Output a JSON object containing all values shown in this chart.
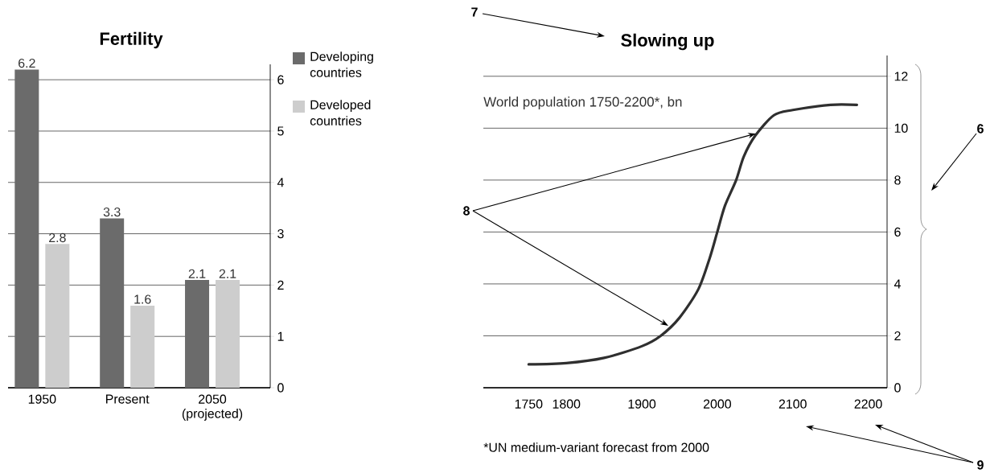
{
  "chart_data": [
    {
      "type": "bar",
      "title": "Fertility",
      "categories": [
        "1950",
        "Present",
        "2050 (projected)"
      ],
      "series": [
        {
          "name": "Developing countries",
          "color": "#6b6b6b",
          "values": [
            6.2,
            3.3,
            2.1
          ]
        },
        {
          "name": "Developed countries",
          "color": "#cdcdcd",
          "values": [
            2.8,
            1.6,
            2.1
          ]
        }
      ],
      "ylim": [
        0,
        6.3
      ],
      "yticks": [
        0,
        1,
        2,
        3,
        4,
        5,
        6
      ],
      "grid": "y",
      "legend": "top right",
      "data_labels": true
    },
    {
      "type": "line",
      "title": "Slowing up",
      "subtitle": "World population 1750-2200*, bn",
      "x": [
        1750,
        1800,
        1850,
        1900,
        1925,
        1950,
        1975,
        1990,
        2000,
        2010,
        2025,
        2035,
        2050,
        2075,
        2100,
        2150,
        2185
      ],
      "values": [
        0.9,
        0.95,
        1.15,
        1.6,
        2.0,
        2.7,
        3.8,
        5.0,
        6.0,
        7.0,
        8.0,
        8.9,
        9.7,
        10.5,
        10.7,
        10.9,
        10.9
      ],
      "color": "#2f2f2f",
      "xlim": [
        1690,
        2225
      ],
      "xticks": [
        1750,
        1800,
        1900,
        2000,
        2100,
        2200
      ],
      "ylim": [
        0,
        12.8
      ],
      "yticks": [
        0,
        2,
        4,
        6,
        8,
        10,
        12
      ],
      "grid": "y",
      "annotations": [
        "*UN medium-variant forecast from 2000",
        "7",
        "8",
        "6",
        "9"
      ]
    }
  ]
}
